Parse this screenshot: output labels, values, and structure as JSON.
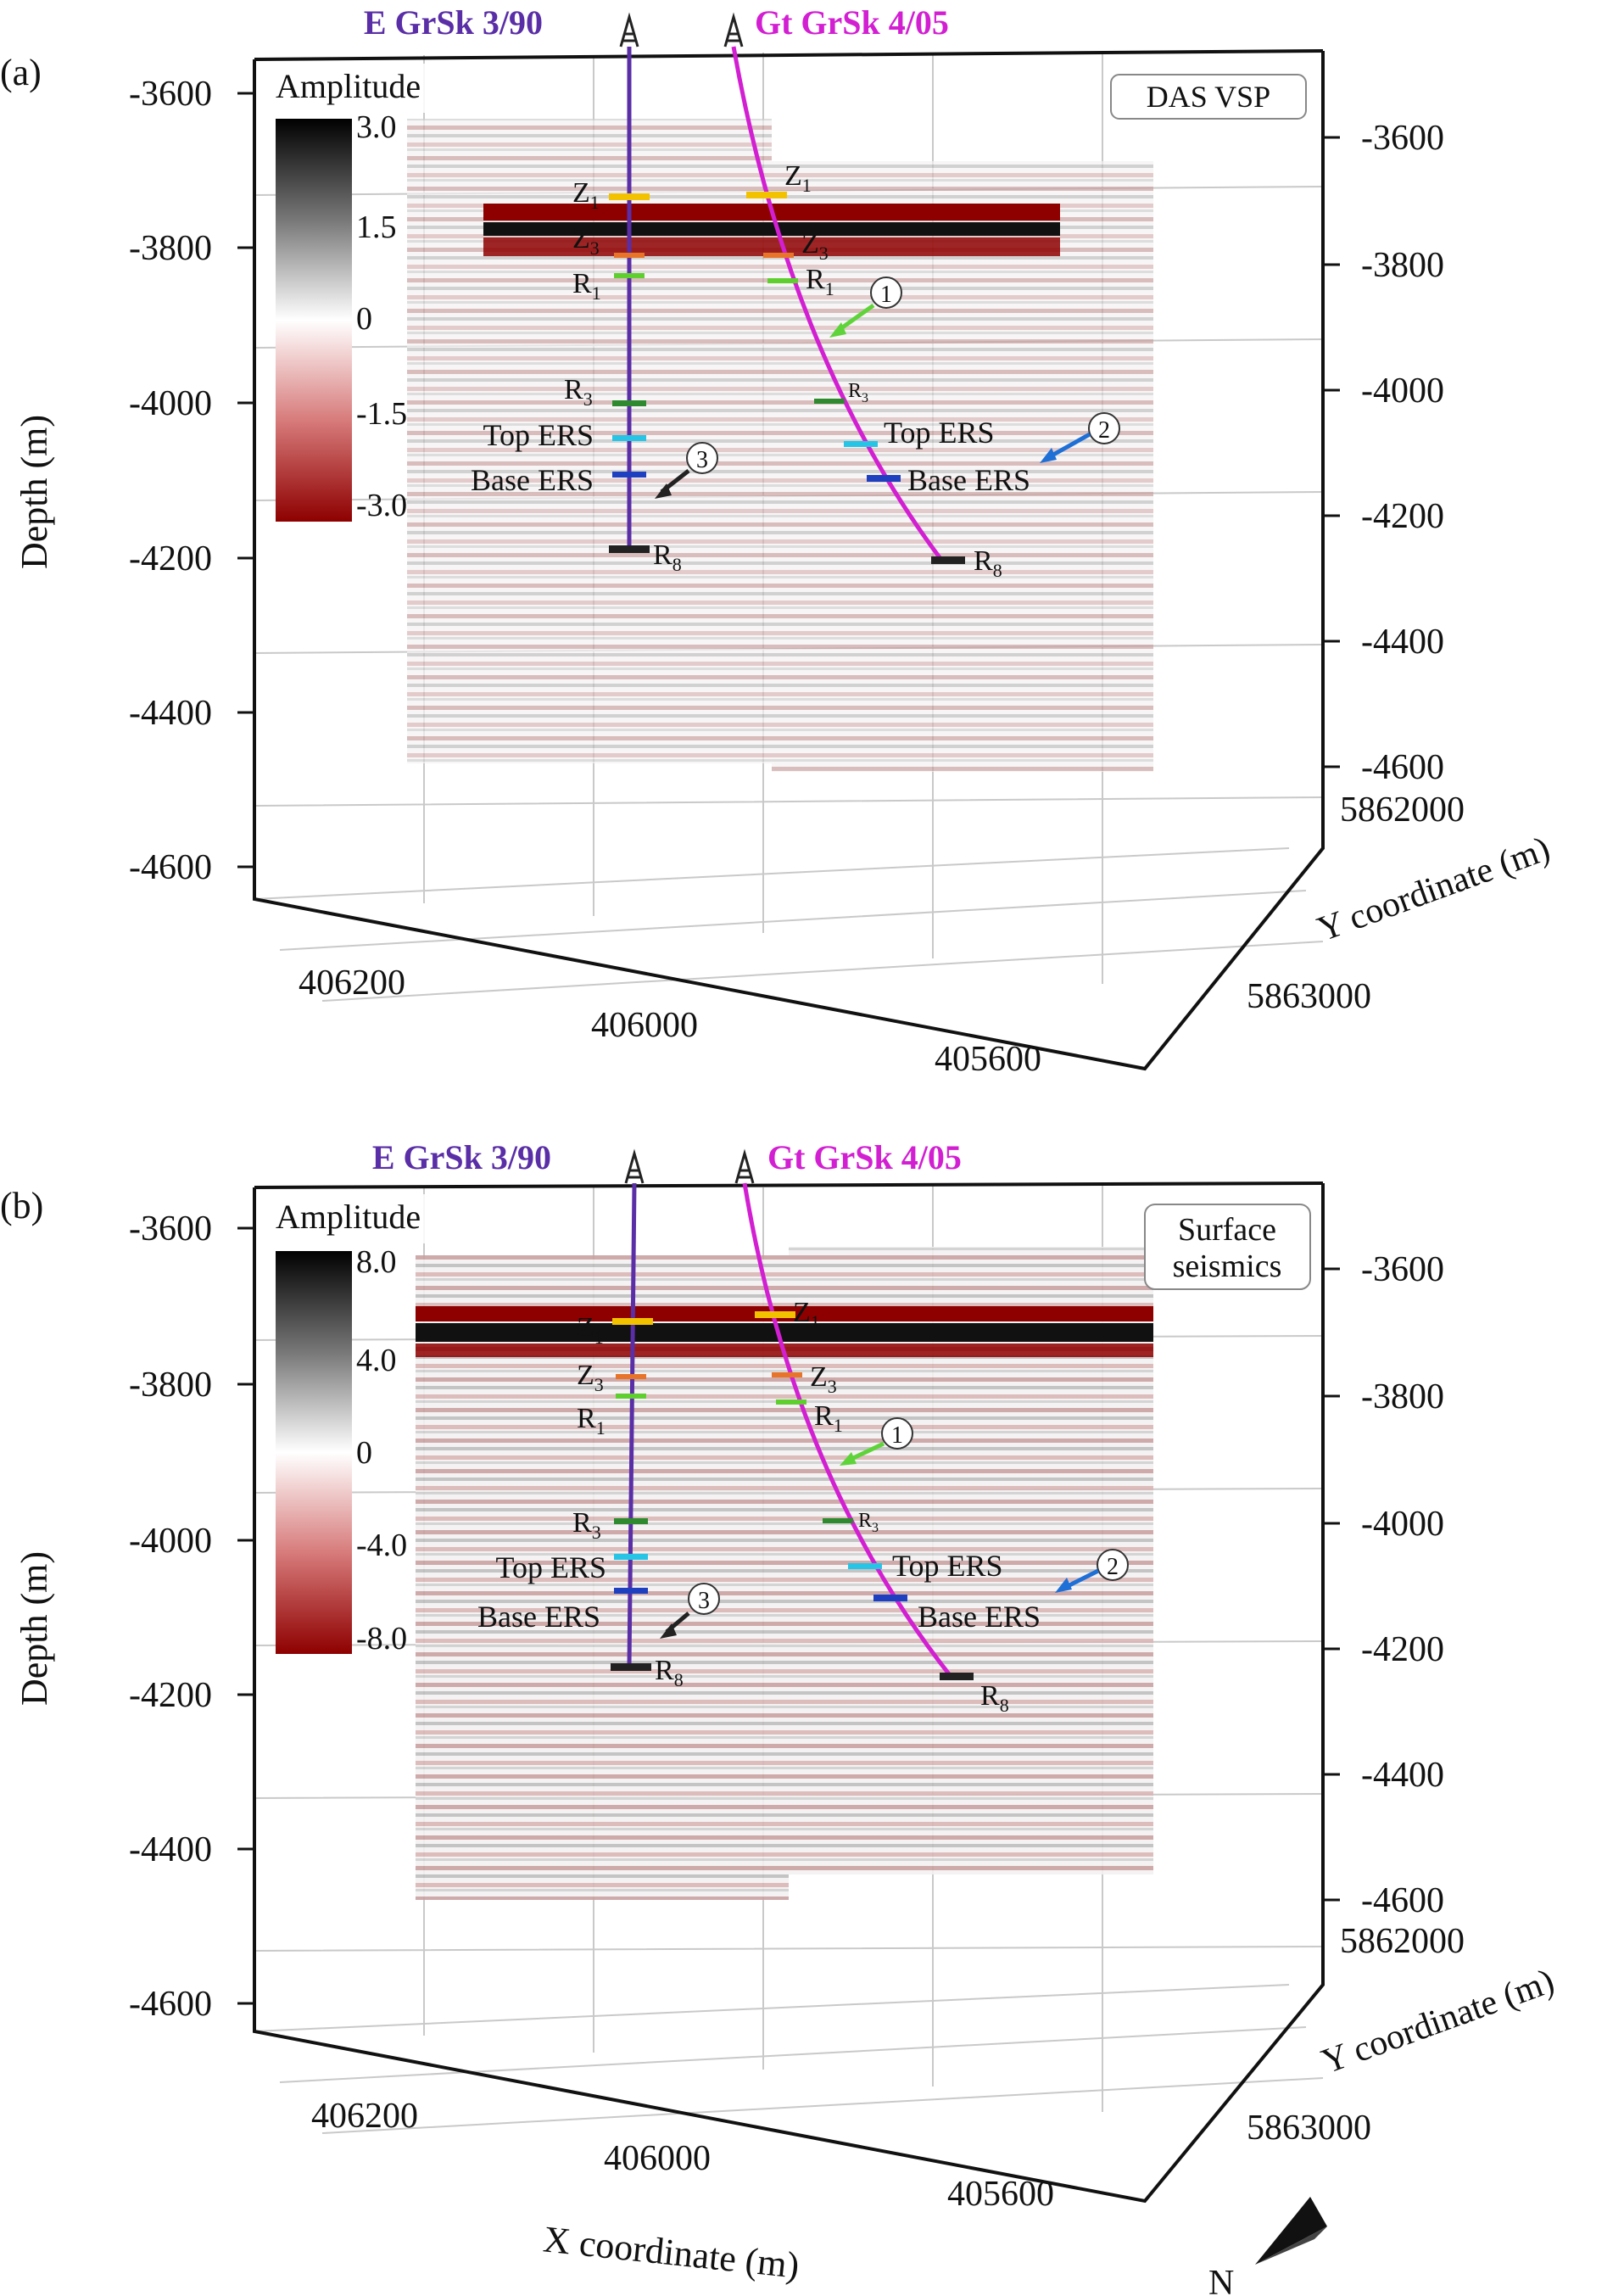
{
  "figure": {
    "panels": [
      {
        "id": "a",
        "label": "(a)",
        "mode_label": "DAS VSP",
        "colorbar": {
          "title": "Amplitude",
          "ticks": [
            "3.0",
            "1.5",
            "0",
            "-1.5",
            "-3.0"
          ]
        },
        "wells": {
          "left": "E GrSk 3/90",
          "right": "Gt GrSk 4/05"
        },
        "depth_ticks_left": [
          "-3600",
          "-3800",
          "-4000",
          "-4200",
          "-4400",
          "-4600"
        ],
        "depth_ticks_right": [
          "-3600",
          "-3800",
          "-4000",
          "-4200",
          "-4400",
          "-4600"
        ],
        "depth_axis_label": "Depth (m)",
        "x_ticks": [
          "406200",
          "406000",
          "405600"
        ],
        "y_ticks": [
          "5862000",
          "5863000"
        ],
        "y_axis_label": "Y coordinate (m)",
        "markers": {
          "z1": "Z",
          "z1_sub": "1",
          "z3": "Z",
          "z3_sub": "3",
          "r1": "R",
          "r1_sub": "1",
          "r3": "R",
          "r3_sub": "3",
          "top_ers": "Top ERS",
          "base_ers": "Base ERS",
          "r8": "R",
          "r8_sub": "8"
        },
        "callouts": [
          "1",
          "2",
          "3"
        ]
      },
      {
        "id": "b",
        "label": "(b)",
        "mode_label_line1": "Surface",
        "mode_label_line2": "seismics",
        "colorbar": {
          "title": "Amplitude",
          "ticks": [
            "8.0",
            "4.0",
            "0",
            "-4.0",
            "-8.0"
          ]
        },
        "wells": {
          "left": "E GrSk 3/90",
          "right": "Gt GrSk 4/05"
        },
        "depth_ticks_left": [
          "-3600",
          "-3800",
          "-4000",
          "-4200",
          "-4400",
          "-4600"
        ],
        "depth_ticks_right": [
          "-3600",
          "-3800",
          "-4000",
          "-4200",
          "-4400",
          "-4600"
        ],
        "depth_axis_label": "Depth (m)",
        "x_ticks": [
          "406200",
          "406000",
          "405600"
        ],
        "x_axis_label": "X coordinate (m)",
        "y_ticks": [
          "5862000",
          "5863000"
        ],
        "y_axis_label": "Y coordinate (m)",
        "markers": {
          "z1": "Z",
          "z1_sub": "1",
          "z3": "Z",
          "z3_sub": "3",
          "r1": "R",
          "r1_sub": "1",
          "r3": "R",
          "r3_sub": "3",
          "top_ers": "Top ERS",
          "base_ers": "Base ERS",
          "r8": "R",
          "r8_sub": "8"
        },
        "callouts": [
          "1",
          "2",
          "3"
        ]
      }
    ],
    "north_label": "N",
    "colors": {
      "well_left": "#5a2ea6",
      "well_right": "#d21fd2",
      "seismic_positive": "#111111",
      "seismic_negative": "#8e0000",
      "z1": "#f2c200",
      "z3": "#e8742a",
      "r1": "#5fcf2f",
      "r3": "#2f8a2f",
      "top_ers": "#27c4e6",
      "base_ers": "#1e3fbf",
      "r8": "#222222",
      "arrow1": "#5fd33a",
      "arrow2": "#1e6fd6",
      "arrow3": "#222222"
    }
  }
}
